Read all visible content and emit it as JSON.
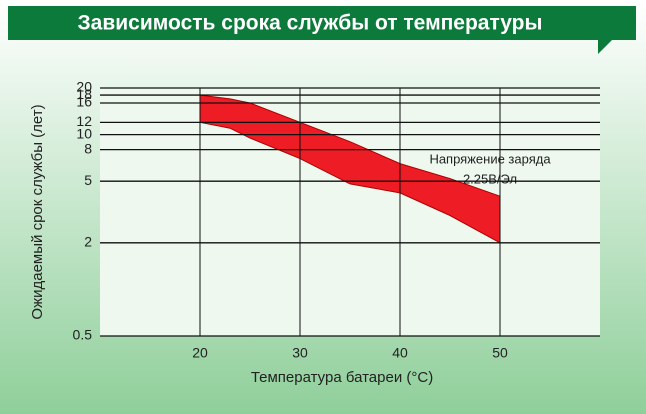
{
  "chart_data": {
    "type": "band",
    "title": "Зависимость срока службы от температуры",
    "x_label": "Температура батареи (°C)",
    "y_label": "Ожидаемый срок службы (лет)",
    "annotation": [
      "Напряжение заряда",
      "2.25В/Эл"
    ],
    "x": [
      20,
      23,
      25,
      30,
      35,
      40,
      45,
      50
    ],
    "upper": [
      18,
      17,
      16,
      12,
      9,
      6.5,
      5.2,
      4
    ],
    "lower": [
      12,
      11,
      9.5,
      7,
      4.8,
      4.2,
      3,
      2
    ],
    "color": "#ee1c25",
    "log_y": true,
    "xlim": [
      10,
      60
    ],
    "xticks": [
      20,
      30,
      40,
      50
    ],
    "ylim": [
      0.5,
      20
    ],
    "yticks": [
      0.5,
      2,
      5,
      8,
      10,
      12,
      16,
      18,
      20
    ],
    "grid": true
  }
}
